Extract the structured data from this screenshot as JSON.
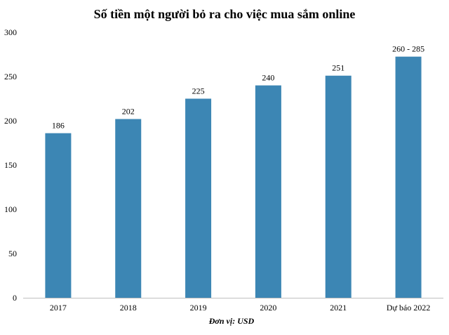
{
  "chart_data": {
    "type": "bar",
    "title": "Số tiền một người bỏ ra cho việc mua sắm online",
    "categories": [
      "2017",
      "2018",
      "2019",
      "2020",
      "2021",
      "Dự báo 2022"
    ],
    "values": [
      186,
      202,
      225,
      240,
      251,
      272.5
    ],
    "data_labels": [
      "186",
      "202",
      "225",
      "240",
      "251",
      "260 - 285"
    ],
    "ylim": [
      0,
      300
    ],
    "yticks": [
      "0",
      "50",
      "100",
      "150",
      "200",
      "250",
      "300"
    ],
    "xlabel": "Đơn vị: USD",
    "ylabel": "",
    "grid": false,
    "bar_color": "#3C86B4"
  }
}
